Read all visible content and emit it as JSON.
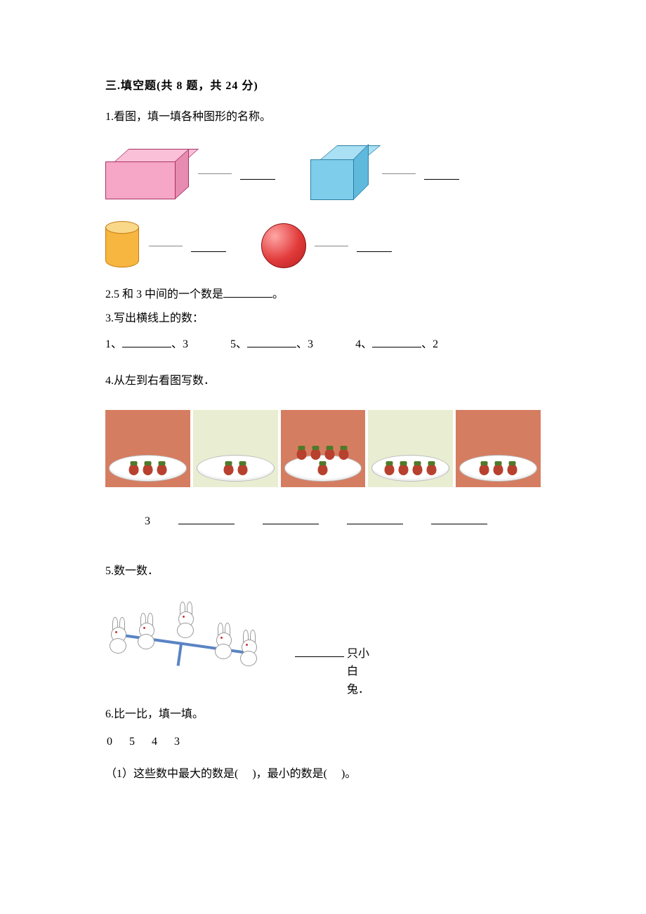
{
  "section": {
    "number": "三",
    "title": "填空题",
    "count_prefix": "(共",
    "q_count": 8,
    "q_unit": "题，共",
    "points": 24,
    "points_unit": "分)"
  },
  "q1": {
    "num": "1.",
    "text": "看图，填一填各种图形的名称。",
    "shapes": {
      "cuboid": {
        "face_color": "#f6a6c6",
        "top_color": "#f9c0d8",
        "side_color": "#e78bb0",
        "edge_color": "#aa3366"
      },
      "cube": {
        "face_color": "#7ecdea",
        "top_color": "#a9e0f3",
        "side_color": "#5fb9dc",
        "edge_color": "#2b7fa5"
      },
      "cylinder": {
        "body_color": "#f6b63f",
        "lid_color": "#f9d889",
        "edge_color": "#c77b11"
      },
      "sphere": {
        "fill_from": "#ffa6a6",
        "fill_to": "#b51f1f",
        "edge_color": "#8a1515"
      }
    }
  },
  "q2": {
    "num": "2.",
    "text_a": "5 和 3 中间的一个数是",
    "text_b": "。"
  },
  "q3": {
    "num": "3.",
    "text": "写出横线上的数：",
    "groups": [
      {
        "a": "1、",
        "b": "、3"
      },
      {
        "a": "5、",
        "b": "、3"
      },
      {
        "a": "4、",
        "b": "、2"
      }
    ]
  },
  "q4": {
    "num": "4.",
    "text": "从左到右看图写数．",
    "plates": [
      {
        "count": 3,
        "bg": "#d57d61"
      },
      {
        "count": 2,
        "bg": "#e9edd2"
      },
      {
        "count": 5,
        "bg": "#d57d61"
      },
      {
        "count": 4,
        "bg": "#e9edd2"
      },
      {
        "count": 3,
        "bg": "#d57d61"
      }
    ],
    "first_answer": "3",
    "berry_color": "#b7412e",
    "leaf_color": "#4f7a2a",
    "band_bg_a": "#d57d61",
    "band_bg_b": "#e9edd2"
  },
  "q5": {
    "num": "5.",
    "text": "数一数．",
    "label_suffix": "只小白兔．",
    "rabbit_count": 5,
    "rabbit_color": "#ffffff",
    "seesaw_color": "#5a84c4"
  },
  "q6": {
    "num": "6.",
    "text": "比一比，填一填。",
    "numbers": [
      0,
      5,
      4,
      3
    ],
    "sub1_prefix": "（1）这些数中最大的数是(",
    "sub1_mid": ")，最小的数是(",
    "sub1_suffix": ")。"
  }
}
